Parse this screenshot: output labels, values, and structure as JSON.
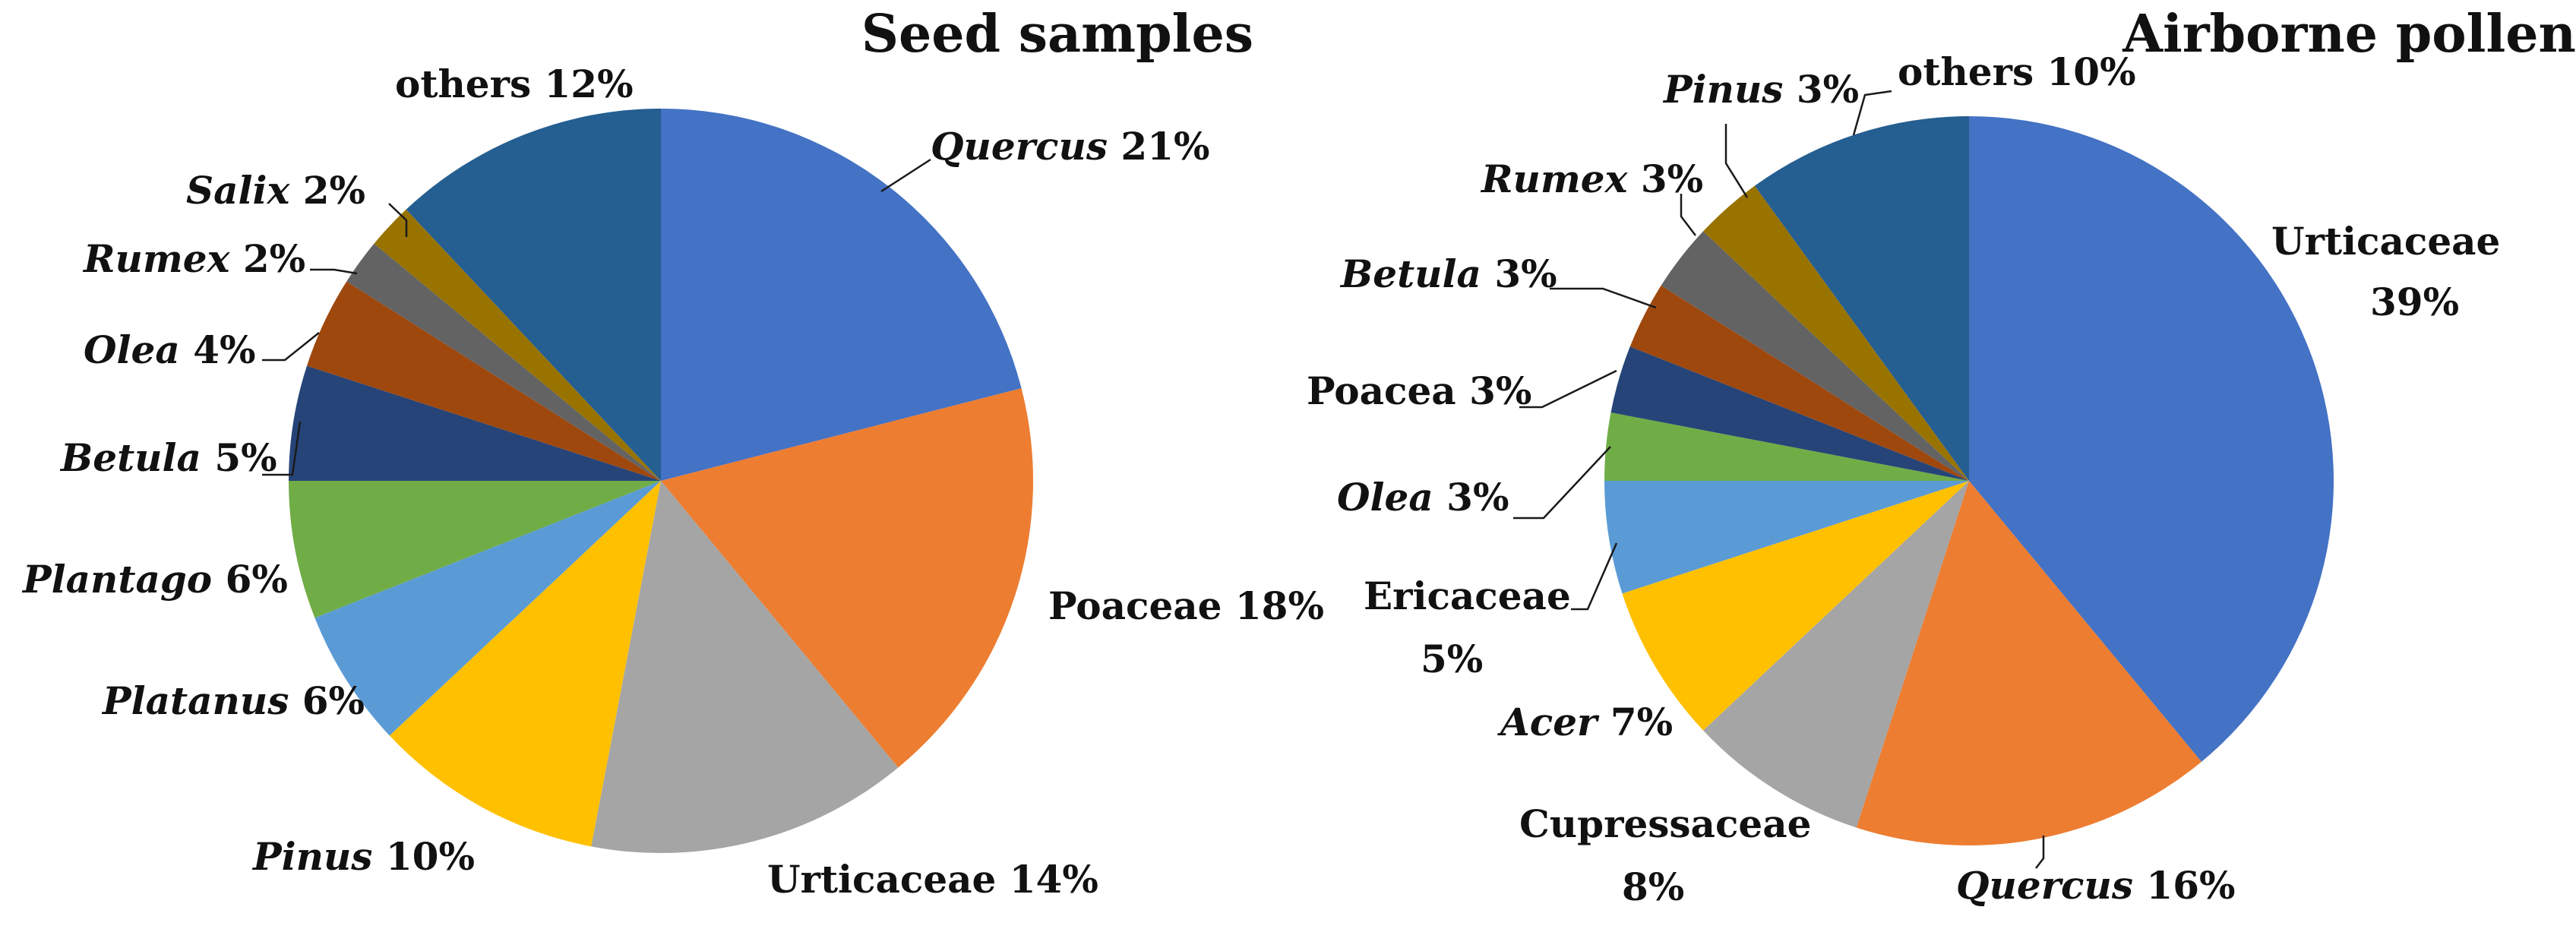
{
  "chart_data": [
    {
      "type": "pie",
      "title": "Seed samples",
      "start": "12 o'clock",
      "direction": "clockwise",
      "slices": [
        {
          "name": "Quercus",
          "label_name": "Quercus",
          "label_value": "21%",
          "value": 21,
          "italic": true,
          "color": "#4472C4"
        },
        {
          "name": "Poaceae",
          "label_name": "Poaceae",
          "label_value": "18%",
          "value": 18,
          "italic": false,
          "color": "#ED7D31"
        },
        {
          "name": "Urticaceae",
          "label_name": "Urticaceae",
          "label_value": "14%",
          "value": 14,
          "italic": false,
          "color": "#A5A5A5"
        },
        {
          "name": "Pinus",
          "label_name": "Pinus",
          "label_value": "10%",
          "value": 10,
          "italic": true,
          "color": "#FFC000"
        },
        {
          "name": "Platanus",
          "label_name": "Platanus",
          "label_value": "6%",
          "value": 6,
          "italic": true,
          "color": "#5B9BD5"
        },
        {
          "name": "Plantago",
          "label_name": "Plantago",
          "label_value": "6%",
          "value": 6,
          "italic": true,
          "color": "#70AD47"
        },
        {
          "name": "Betula",
          "label_name": "Betula",
          "label_value": "5%",
          "value": 5,
          "italic": true,
          "color": "#264478"
        },
        {
          "name": "Olea",
          "label_name": "Olea",
          "label_value": "4%",
          "value": 4,
          "italic": true,
          "color": "#9E480E"
        },
        {
          "name": "Rumex",
          "label_name": "Rumex",
          "label_value": "2%",
          "value": 2,
          "italic": true,
          "color": "#636363"
        },
        {
          "name": "Salix",
          "label_name": "Salix",
          "label_value": "2%",
          "value": 2,
          "italic": true,
          "color": "#997300"
        },
        {
          "name": "others",
          "label_name": "others",
          "label_value": "12%",
          "value": 12,
          "italic": false,
          "color": "#255E91"
        }
      ]
    },
    {
      "type": "pie",
      "title": "Airborne pollen",
      "start": "12 o'clock",
      "direction": "clockwise",
      "slices": [
        {
          "name": "Urticaceae",
          "label_name": "Urticaceae",
          "label_value": "39%",
          "value": 39,
          "italic": false,
          "color": "#4472C4"
        },
        {
          "name": "Quercus",
          "label_name": "Quercus",
          "label_value": "16%",
          "value": 16,
          "italic": true,
          "color": "#ED7D31"
        },
        {
          "name": "Cupressaceae",
          "label_name": "Cupressaceae",
          "label_value": "8%",
          "value": 8,
          "italic": false,
          "color": "#A5A5A5"
        },
        {
          "name": "Acer",
          "label_name": "Acer",
          "label_value": "7%",
          "value": 7,
          "italic": true,
          "color": "#FFC000"
        },
        {
          "name": "Ericaceae",
          "label_name": "Ericaceae",
          "label_value": "5%",
          "value": 5,
          "italic": false,
          "color": "#5B9BD5"
        },
        {
          "name": "Olea",
          "label_name": "Olea",
          "label_value": "3%",
          "value": 3,
          "italic": true,
          "color": "#70AD47"
        },
        {
          "name": "Poacea",
          "label_name": "Poacea",
          "label_value": "3%",
          "value": 3,
          "italic": false,
          "color": "#264478"
        },
        {
          "name": "Betula",
          "label_name": "Betula",
          "label_value": "3%",
          "value": 3,
          "italic": true,
          "color": "#9E480E"
        },
        {
          "name": "Rumex",
          "label_name": "Rumex",
          "label_value": "3%",
          "value": 3,
          "italic": true,
          "color": "#636363"
        },
        {
          "name": "Pinus",
          "label_name": "Pinus",
          "label_value": "3%",
          "value": 3,
          "italic": true,
          "color": "#997300"
        },
        {
          "name": "others",
          "label_name": "others",
          "label_value": "10%",
          "value": 10,
          "italic": false,
          "color": "#255E91"
        }
      ]
    }
  ]
}
